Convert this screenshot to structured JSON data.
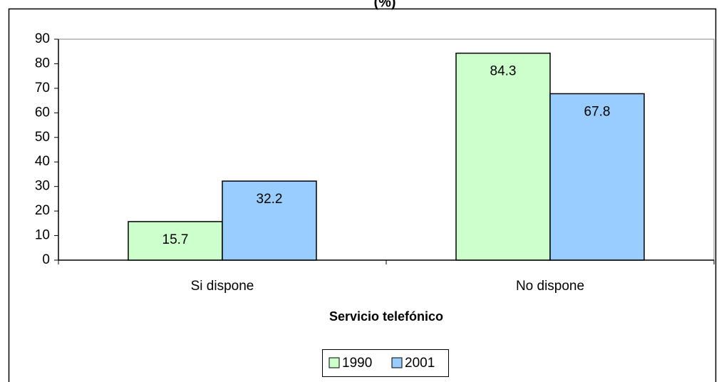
{
  "chart_data": {
    "type": "bar",
    "title": "(%)",
    "x_label": "Servicio telefónico",
    "categories": [
      "Si dispone",
      "No dispone"
    ],
    "series": [
      {
        "name": "1990",
        "color": "#ccffcc",
        "values": [
          15.7,
          84.3
        ]
      },
      {
        "name": "2001",
        "color": "#99ccff",
        "values": [
          32.2,
          67.8
        ]
      }
    ],
    "ylim": [
      0,
      90
    ],
    "yticks": [
      0,
      10,
      20,
      30,
      40,
      50,
      60,
      70,
      80,
      90
    ],
    "grid": false,
    "legend": "bottom"
  }
}
